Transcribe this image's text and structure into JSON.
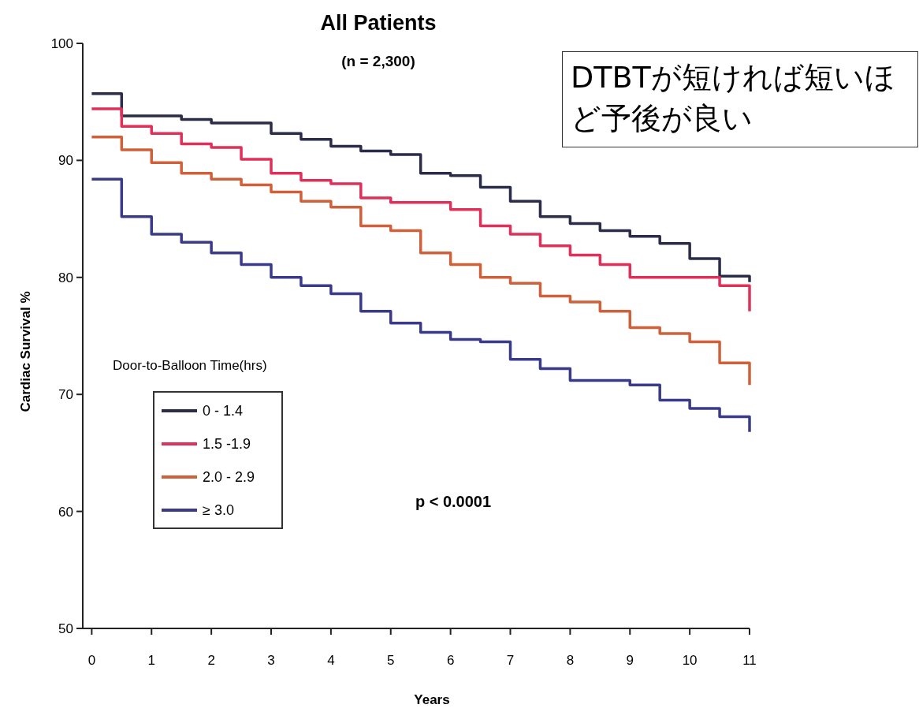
{
  "chart_data": {
    "type": "step",
    "title": "All Patients",
    "subtitle": "(n = 2,300)",
    "xlabel": "Years",
    "ylabel": "Cardiac Survival %",
    "legend_title": "Door-to-Balloon Time(hrs)",
    "x": [
      0,
      0.5,
      1,
      1.5,
      2,
      2.5,
      3,
      3.5,
      4,
      4.5,
      5,
      5.5,
      6,
      6.5,
      7,
      7.5,
      8,
      8.5,
      9,
      9.5,
      10,
      10.5,
      11
    ],
    "series": [
      {
        "name": "0 - 1.4",
        "color": "#2b2b4a",
        "values": [
          95.7,
          93.8,
          93.8,
          93.5,
          93.2,
          93.2,
          92.3,
          91.8,
          91.2,
          90.8,
          90.5,
          88.9,
          88.7,
          87.7,
          86.5,
          85.2,
          84.6,
          84.0,
          83.5,
          82.9,
          81.6,
          80.1,
          79.6
        ]
      },
      {
        "name": "1.5 -1.9",
        "color": "#e0305a",
        "values": [
          94.4,
          92.9,
          92.3,
          91.4,
          91.1,
          90.1,
          88.9,
          88.3,
          88.0,
          86.8,
          86.4,
          86.4,
          85.8,
          84.4,
          83.7,
          82.7,
          81.9,
          81.1,
          80.0,
          80.0,
          80.0,
          79.3,
          77.1
        ]
      },
      {
        "name": "2.0 - 2.9",
        "color": "#d0603a",
        "values": [
          92.0,
          90.9,
          89.8,
          88.9,
          88.4,
          87.9,
          87.3,
          86.5,
          86.0,
          84.4,
          84.0,
          82.1,
          81.1,
          80.0,
          79.5,
          78.4,
          77.9,
          77.1,
          75.7,
          75.2,
          74.5,
          72.7,
          70.8
        ]
      },
      {
        "name": "≥ 3.0",
        "color": "#3a3a8a",
        "values": [
          88.4,
          85.2,
          83.7,
          83.0,
          82.1,
          81.1,
          80.0,
          79.3,
          78.6,
          77.1,
          76.1,
          75.3,
          74.7,
          74.5,
          73.0,
          72.2,
          71.2,
          71.2,
          70.8,
          69.5,
          68.8,
          68.1,
          66.8
        ]
      }
    ],
    "xlim": [
      -0.15,
      11
    ],
    "xticks": [
      0,
      1,
      2,
      3,
      4,
      5,
      6,
      7,
      8,
      9,
      10,
      11
    ],
    "ylim": [
      50,
      100
    ],
    "yticks": [
      50,
      60,
      70,
      80,
      90,
      100
    ],
    "annotations": [
      "DTBTが短ければ短いほど予後が良い",
      "p < 0.0001"
    ],
    "legend": "left",
    "grid": false,
    "line_style": "solid",
    "marker": "none"
  }
}
